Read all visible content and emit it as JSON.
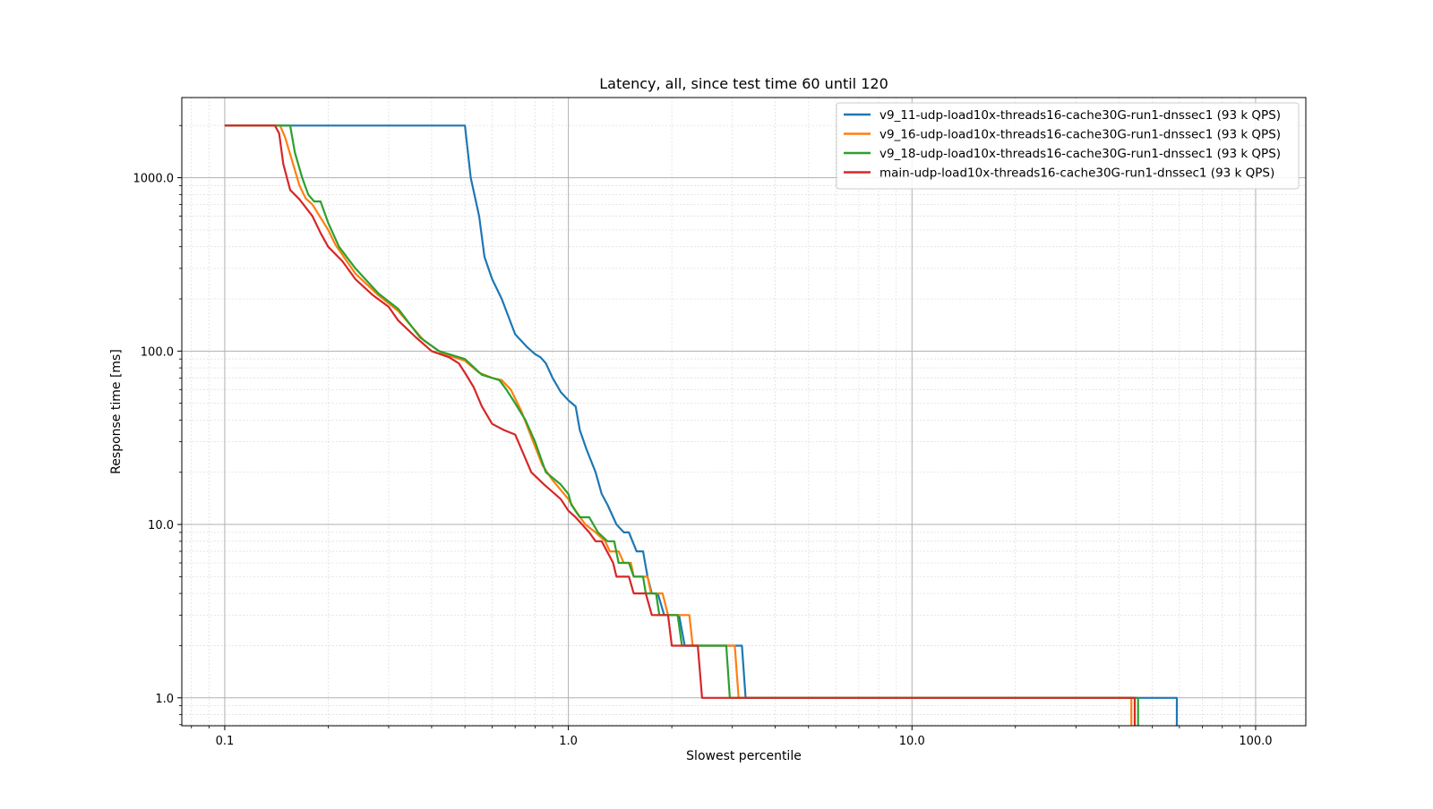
{
  "chart_data": {
    "type": "line",
    "title": "Latency, all, since test time 60 until 120",
    "xlabel": "Slowest percentile",
    "ylabel": "Response time [ms]",
    "xscale": "log",
    "yscale": "log",
    "xlim": [
      0.075,
      140
    ],
    "ylim": [
      0.69,
      2900
    ],
    "grid": true,
    "legend_position": "top-right",
    "x_ticks": [
      0.1,
      1.0,
      10.0,
      100.0
    ],
    "x_tick_labels": [
      "0.1",
      "1.0",
      "10.0",
      "100.0"
    ],
    "y_ticks": [
      1,
      10,
      100,
      1000
    ],
    "y_tick_labels": [
      "1.0",
      "10.0",
      "100.0",
      "1000.0"
    ],
    "series": [
      {
        "name": "v9_11-udp-load10x-threads16-cache30G-run1-dnssec1 (93 k QPS)",
        "color": "#1f77b4",
        "points": [
          [
            0.1,
            2000
          ],
          [
            0.5,
            2000
          ],
          [
            0.52,
            1000
          ],
          [
            0.55,
            600
          ],
          [
            0.57,
            350
          ],
          [
            0.6,
            260
          ],
          [
            0.64,
            200
          ],
          [
            0.7,
            125
          ],
          [
            0.76,
            105
          ],
          [
            0.8,
            96
          ],
          [
            0.83,
            92
          ],
          [
            0.86,
            85
          ],
          [
            0.9,
            70
          ],
          [
            0.95,
            58
          ],
          [
            1.0,
            52
          ],
          [
            1.05,
            48
          ],
          [
            1.08,
            35
          ],
          [
            1.13,
            27
          ],
          [
            1.2,
            20
          ],
          [
            1.25,
            15
          ],
          [
            1.3,
            13
          ],
          [
            1.38,
            10
          ],
          [
            1.45,
            9
          ],
          [
            1.5,
            9
          ],
          [
            1.58,
            7
          ],
          [
            1.65,
            7
          ],
          [
            1.7,
            5
          ],
          [
            1.75,
            4
          ],
          [
            1.82,
            4
          ],
          [
            1.9,
            3
          ],
          [
            2.1,
            3
          ],
          [
            2.18,
            2
          ],
          [
            3.2,
            2
          ],
          [
            3.28,
            1
          ],
          [
            59,
            1
          ],
          [
            59,
            0.69
          ]
        ]
      },
      {
        "name": "v9_16-udp-load10x-threads16-cache30G-run1-dnssec1 (93 k QPS)",
        "color": "#ff7f0e",
        "points": [
          [
            0.1,
            2000
          ],
          [
            0.145,
            2000
          ],
          [
            0.15,
            1700
          ],
          [
            0.158,
            1200
          ],
          [
            0.165,
            900
          ],
          [
            0.172,
            760
          ],
          [
            0.18,
            700
          ],
          [
            0.2,
            500
          ],
          [
            0.21,
            410
          ],
          [
            0.24,
            280
          ],
          [
            0.28,
            210
          ],
          [
            0.32,
            170
          ],
          [
            0.38,
            115
          ],
          [
            0.43,
            97
          ],
          [
            0.5,
            88
          ],
          [
            0.55,
            75
          ],
          [
            0.6,
            70
          ],
          [
            0.64,
            68
          ],
          [
            0.68,
            60
          ],
          [
            0.73,
            45
          ],
          [
            0.78,
            32
          ],
          [
            0.84,
            22
          ],
          [
            0.9,
            18
          ],
          [
            1.0,
            14
          ],
          [
            1.05,
            12
          ],
          [
            1.12,
            10
          ],
          [
            1.2,
            9
          ],
          [
            1.28,
            8
          ],
          [
            1.32,
            7
          ],
          [
            1.4,
            7
          ],
          [
            1.45,
            6
          ],
          [
            1.52,
            6
          ],
          [
            1.55,
            5
          ],
          [
            1.7,
            5
          ],
          [
            1.74,
            4
          ],
          [
            1.88,
            4
          ],
          [
            1.95,
            3
          ],
          [
            2.25,
            3
          ],
          [
            2.3,
            2
          ],
          [
            3.05,
            2
          ],
          [
            3.13,
            1
          ],
          [
            43.5,
            1
          ],
          [
            43.5,
            0.69
          ]
        ]
      },
      {
        "name": "v9_18-udp-load10x-threads16-cache30G-run1-dnssec1 (93 k QPS)",
        "color": "#2ca02c",
        "points": [
          [
            0.1,
            2000
          ],
          [
            0.155,
            2000
          ],
          [
            0.16,
            1400
          ],
          [
            0.168,
            1000
          ],
          [
            0.175,
            800
          ],
          [
            0.182,
            730
          ],
          [
            0.19,
            730
          ],
          [
            0.2,
            550
          ],
          [
            0.215,
            400
          ],
          [
            0.24,
            300
          ],
          [
            0.28,
            215
          ],
          [
            0.32,
            175
          ],
          [
            0.37,
            120
          ],
          [
            0.42,
            100
          ],
          [
            0.5,
            90
          ],
          [
            0.56,
            73
          ],
          [
            0.6,
            70
          ],
          [
            0.63,
            68
          ],
          [
            0.66,
            60
          ],
          [
            0.7,
            50
          ],
          [
            0.75,
            40
          ],
          [
            0.8,
            30
          ],
          [
            0.86,
            20
          ],
          [
            0.95,
            17
          ],
          [
            1.0,
            15
          ],
          [
            1.02,
            13
          ],
          [
            1.08,
            11
          ],
          [
            1.15,
            11
          ],
          [
            1.22,
            9
          ],
          [
            1.3,
            8
          ],
          [
            1.36,
            8
          ],
          [
            1.4,
            6
          ],
          [
            1.5,
            6
          ],
          [
            1.55,
            5
          ],
          [
            1.65,
            5
          ],
          [
            1.68,
            4
          ],
          [
            1.8,
            4
          ],
          [
            1.84,
            3
          ],
          [
            2.08,
            3
          ],
          [
            2.14,
            2
          ],
          [
            2.88,
            2
          ],
          [
            2.95,
            1
          ],
          [
            45.5,
            1
          ],
          [
            45.5,
            0.69
          ]
        ]
      },
      {
        "name": "main-udp-load10x-threads16-cache30G-run1-dnssec1 (93 k QPS)",
        "color": "#d62728",
        "points": [
          [
            0.1,
            2000
          ],
          [
            0.14,
            2000
          ],
          [
            0.144,
            1800
          ],
          [
            0.148,
            1200
          ],
          [
            0.155,
            850
          ],
          [
            0.165,
            750
          ],
          [
            0.18,
            600
          ],
          [
            0.19,
            480
          ],
          [
            0.2,
            400
          ],
          [
            0.22,
            330
          ],
          [
            0.24,
            260
          ],
          [
            0.27,
            210
          ],
          [
            0.3,
            180
          ],
          [
            0.32,
            150
          ],
          [
            0.36,
            120
          ],
          [
            0.4,
            100
          ],
          [
            0.45,
            92
          ],
          [
            0.48,
            85
          ],
          [
            0.5,
            75
          ],
          [
            0.53,
            62
          ],
          [
            0.56,
            48
          ],
          [
            0.6,
            38
          ],
          [
            0.65,
            35
          ],
          [
            0.7,
            33
          ],
          [
            0.78,
            20
          ],
          [
            0.85,
            17
          ],
          [
            0.95,
            14
          ],
          [
            1.0,
            12
          ],
          [
            1.05,
            11
          ],
          [
            1.15,
            9
          ],
          [
            1.2,
            8
          ],
          [
            1.25,
            8
          ],
          [
            1.35,
            6
          ],
          [
            1.38,
            5
          ],
          [
            1.5,
            5
          ],
          [
            1.55,
            4
          ],
          [
            1.68,
            4
          ],
          [
            1.75,
            3
          ],
          [
            1.95,
            3
          ],
          [
            2.0,
            2
          ],
          [
            2.38,
            2
          ],
          [
            2.45,
            1
          ],
          [
            44.5,
            1
          ],
          [
            44.5,
            0.69
          ]
        ]
      }
    ]
  }
}
